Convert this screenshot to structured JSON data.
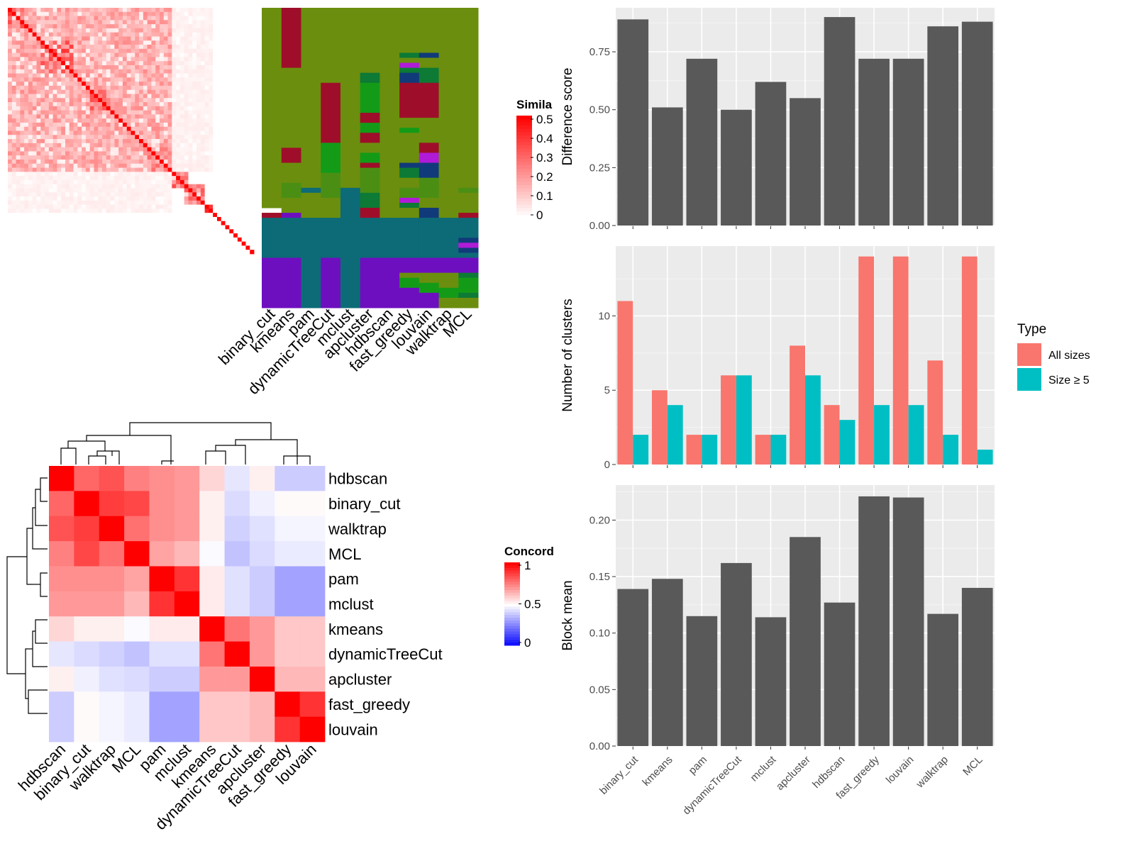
{
  "chart_data": [
    {
      "type": "heatmap",
      "panel": "similarity-heatmap",
      "legend": {
        "title": "Simila",
        "ticks": [
          "0.5",
          "0.4",
          "0.3",
          "0.2",
          "0.1",
          "0"
        ],
        "range": [
          0,
          0.5
        ],
        "colors": {
          "low": "#ffffff",
          "high": "#ff0000"
        }
      },
      "n_terms": 60,
      "diagonal_value": 0.5,
      "blocks": [
        {
          "start": 0,
          "end": 40,
          "level": 0.17,
          "note": "main red block"
        },
        {
          "start": 0,
          "end": 5,
          "level": 0.32
        },
        {
          "start": 8,
          "end": 16,
          "level": 0.3
        },
        {
          "start": 20,
          "end": 25,
          "level": 0.26
        },
        {
          "start": 34,
          "end": 40,
          "level": 0.22
        },
        {
          "start": 40,
          "end": 44,
          "level": 0.28
        },
        {
          "start": 43,
          "end": 48,
          "level": 0.25
        },
        {
          "start": 48,
          "end": 50,
          "level": 0.4
        }
      ]
    },
    {
      "type": "heatmap",
      "panel": "cluster-membership",
      "columns": [
        "binary_cut",
        "kmeans",
        "pam",
        "dynamicTreeCut",
        "mclust",
        "apcluster",
        "hdbscan",
        "fast_greedy",
        "louvain",
        "walktrap",
        "MCL"
      ],
      "palette": {
        "olive": "#6b8e0e",
        "darkred": "#9e0e2a",
        "green": "#139b18",
        "darkgreen": "#0d7a35",
        "teal": "#0d6b77",
        "purple": "#6e0fbf",
        "magenta": "#b01bd8",
        "navy": "#113a7a",
        "mid": "#4a8f14"
      }
    },
    {
      "type": "heatmap",
      "panel": "concordance",
      "methods": [
        "hdbscan",
        "binary_cut",
        "walktrap",
        "MCL",
        "pam",
        "mclust",
        "kmeans",
        "dynamicTreeCut",
        "apcluster",
        "fast_greedy",
        "louvain"
      ],
      "column_methods": [
        "hdbscan",
        "binary_cut",
        "walktrap",
        "MCL",
        "pam",
        "mclust",
        "kmeans",
        "dynamicTreeCut",
        "apcluster",
        "fast_greedy",
        "louvain"
      ],
      "legend": {
        "title": "Concord",
        "ticks": [
          "1",
          "0.5",
          "0"
        ],
        "range": [
          0,
          1
        ],
        "colors": {
          "low": "#0000ff",
          "mid": "#ffffff",
          "high": "#ff0000"
        }
      },
      "matrix": [
        [
          1.0,
          0.8,
          0.84,
          0.75,
          0.72,
          0.7,
          0.58,
          0.45,
          0.53,
          0.4,
          0.4
        ],
        [
          0.8,
          1.0,
          0.88,
          0.86,
          0.72,
          0.7,
          0.53,
          0.43,
          0.47,
          0.51,
          0.51
        ],
        [
          0.84,
          0.88,
          1.0,
          0.78,
          0.72,
          0.7,
          0.53,
          0.41,
          0.44,
          0.48,
          0.48
        ],
        [
          0.75,
          0.86,
          0.78,
          1.0,
          0.68,
          0.64,
          0.49,
          0.38,
          0.43,
          0.46,
          0.46
        ],
        [
          0.72,
          0.72,
          0.72,
          0.68,
          1.0,
          0.9,
          0.54,
          0.44,
          0.4,
          0.32,
          0.32
        ],
        [
          0.7,
          0.7,
          0.7,
          0.64,
          0.9,
          1.0,
          0.54,
          0.44,
          0.4,
          0.32,
          0.32
        ],
        [
          0.58,
          0.53,
          0.53,
          0.49,
          0.54,
          0.54,
          1.0,
          0.77,
          0.7,
          0.61,
          0.61
        ],
        [
          0.45,
          0.43,
          0.41,
          0.38,
          0.44,
          0.44,
          0.77,
          1.0,
          0.7,
          0.61,
          0.61
        ],
        [
          0.53,
          0.47,
          0.44,
          0.43,
          0.4,
          0.4,
          0.7,
          0.7,
          1.0,
          0.64,
          0.64
        ],
        [
          0.4,
          0.51,
          0.48,
          0.46,
          0.32,
          0.32,
          0.61,
          0.61,
          0.64,
          1.0,
          0.9
        ],
        [
          0.4,
          0.51,
          0.48,
          0.46,
          0.32,
          0.32,
          0.61,
          0.61,
          0.64,
          0.9,
          1.0
        ]
      ]
    },
    {
      "type": "bar",
      "panel": "difference-score",
      "categories": [
        "binary_cut",
        "kmeans",
        "pam",
        "dynamicTreeCut",
        "mclust",
        "apcluster",
        "hdbscan",
        "fast_greedy",
        "louvain",
        "walktrap",
        "MCL"
      ],
      "values": [
        0.89,
        0.51,
        0.72,
        0.5,
        0.62,
        0.55,
        0.9,
        0.72,
        0.72,
        0.86,
        0.88
      ],
      "ylabel": "Difference score",
      "ylim": [
        0,
        0.94
      ],
      "yticks": [
        "0.00",
        "0.25",
        "0.50",
        "0.75"
      ],
      "bar_color": "#595959"
    },
    {
      "type": "bar",
      "panel": "number-of-clusters",
      "categories": [
        "binary_cut",
        "kmeans",
        "pam",
        "dynamicTreeCut",
        "mclust",
        "apcluster",
        "hdbscan",
        "fast_greedy",
        "louvain",
        "walktrap",
        "MCL"
      ],
      "series": [
        {
          "name": "All sizes",
          "color": "#f8766d",
          "values": [
            11,
            5,
            2,
            6,
            2,
            8,
            4,
            14,
            14,
            7,
            14
          ]
        },
        {
          "name": "Size ≥ 5",
          "color": "#00bfc4",
          "values": [
            2,
            4,
            2,
            6,
            2,
            6,
            3,
            4,
            4,
            2,
            1
          ]
        }
      ],
      "ylabel": "Number of clusters",
      "ylim": [
        0,
        14.7
      ],
      "yticks": [
        "0",
        "5",
        "10"
      ],
      "legend": {
        "title": "Type",
        "position": "right"
      }
    },
    {
      "type": "bar",
      "panel": "block-mean",
      "categories": [
        "binary_cut",
        "kmeans",
        "pam",
        "dynamicTreeCut",
        "mclust",
        "apcluster",
        "hdbscan",
        "fast_greedy",
        "louvain",
        "walktrap",
        "MCL"
      ],
      "values": [
        0.139,
        0.148,
        0.115,
        0.162,
        0.114,
        0.185,
        0.127,
        0.221,
        0.22,
        0.117,
        0.14
      ],
      "ylabel": "Block mean",
      "ylim": [
        0,
        0.231
      ],
      "yticks": [
        "0.00",
        "0.05",
        "0.10",
        "0.15",
        "0.20"
      ],
      "bar_color": "#595959"
    }
  ]
}
